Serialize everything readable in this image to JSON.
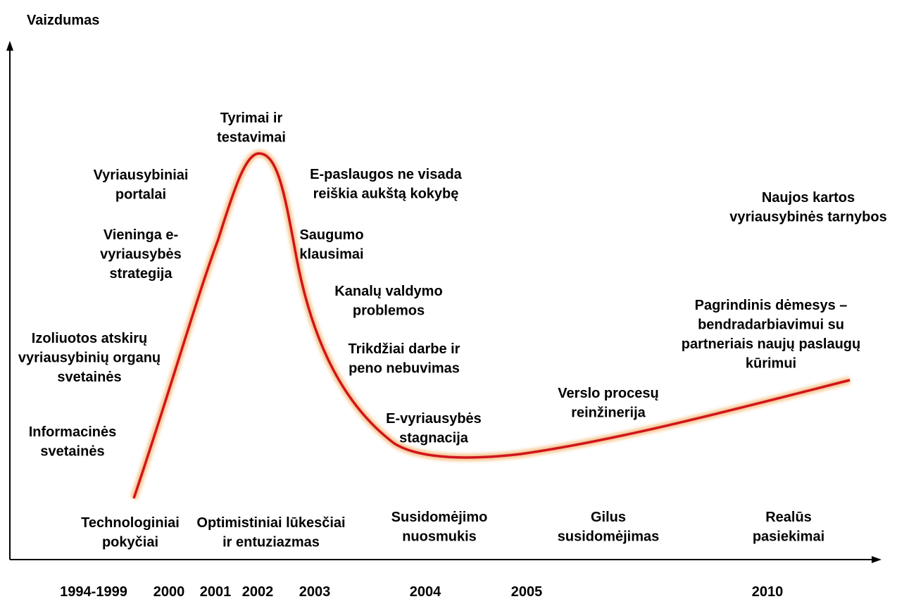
{
  "axis_label": "Vaizdumas",
  "annotations": [
    {
      "lines": [
        "Tyrimai ir",
        "testavimai"
      ]
    },
    {
      "lines": [
        "Vyriausybiniai",
        "portalai"
      ]
    },
    {
      "lines": [
        "Vieninga e-",
        "vyriausybės",
        "strategija"
      ]
    },
    {
      "lines": [
        "Izoliuotos atskirų",
        "vyriausybinių organų",
        "svetainės"
      ]
    },
    {
      "lines": [
        "Informacinės",
        "svetainės"
      ]
    },
    {
      "lines": [
        "E-paslaugos ne visada",
        "reiškia aukštą kokybę"
      ]
    },
    {
      "lines": [
        "Saugumo",
        "klausimai"
      ]
    },
    {
      "lines": [
        "Kanalų valdymo",
        "problemos"
      ]
    },
    {
      "lines": [
        "Trikdžiai darbe ir",
        "peno nebuvimas"
      ]
    },
    {
      "lines": [
        "E-vyriausybės",
        "stagnacija"
      ]
    },
    {
      "lines": [
        "Verslo procesų",
        "reinžinerija"
      ]
    },
    {
      "lines": [
        "Naujos kartos",
        "vyriausybinės tarnybos"
      ]
    },
    {
      "lines": [
        "Pagrindinis dėmesys –",
        "bendradarbiavimui su",
        "partneriais naujų paslaugų",
        "kūrimui"
      ]
    }
  ],
  "phases": [
    {
      "lines": [
        "Technologiniai",
        "pokyčiai"
      ]
    },
    {
      "lines": [
        "Optimistiniai lūkesčiai",
        "ir entuziazmas"
      ]
    },
    {
      "lines": [
        "Susidomėjimo",
        "nuosmukis"
      ]
    },
    {
      "lines": [
        "Gilus",
        "susidomėjimas"
      ]
    },
    {
      "lines": [
        "Realūs",
        "pasiekimai"
      ]
    }
  ],
  "years": [
    "1994-1999",
    "2000",
    "2001",
    "2002",
    "2003",
    "2004",
    "2005",
    "2010"
  ]
}
